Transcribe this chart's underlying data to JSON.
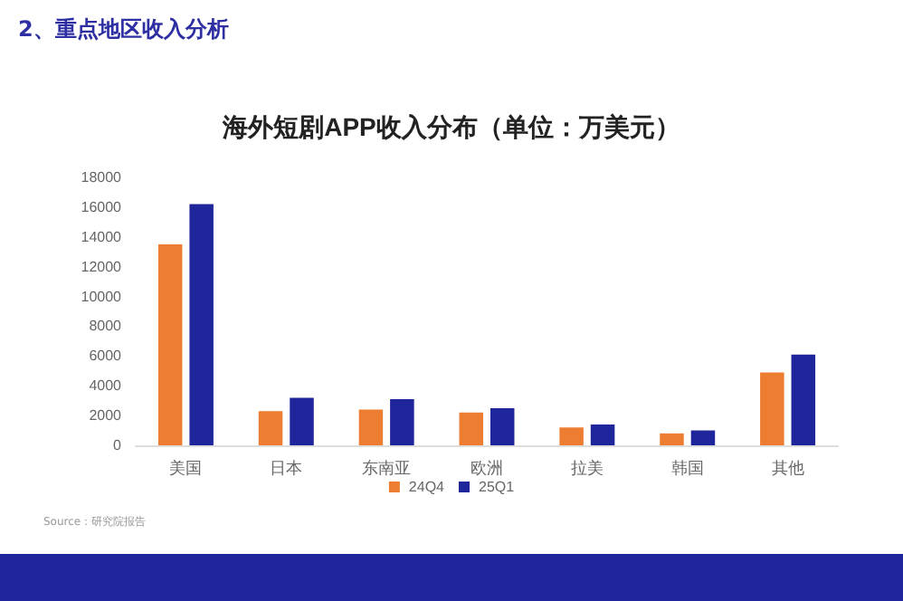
{
  "chart_data": {
    "type": "bar",
    "title": "海外短剧APP收入分布（单位：万美元）",
    "categories": [
      "美国",
      "日本",
      "东南亚",
      "欧洲",
      "拉美",
      "韩国",
      "其他"
    ],
    "series": [
      {
        "name": "24Q4",
        "color": "#ed7d31",
        "values": [
          13500,
          2300,
          2400,
          2200,
          1200,
          800,
          4900
        ]
      },
      {
        "name": "25Q1",
        "color": "#1f259b",
        "values": [
          16200,
          3200,
          3100,
          2500,
          1400,
          1000,
          6100
        ]
      }
    ],
    "ylim": [
      0,
      18000
    ],
    "yticks": [
      0,
      2000,
      4000,
      6000,
      8000,
      10000,
      12000,
      14000,
      16000,
      18000
    ],
    "grid": false,
    "legend": "bottom",
    "annotations": [
      "2、重点地区收入分析",
      "Source：研究院报告"
    ]
  }
}
